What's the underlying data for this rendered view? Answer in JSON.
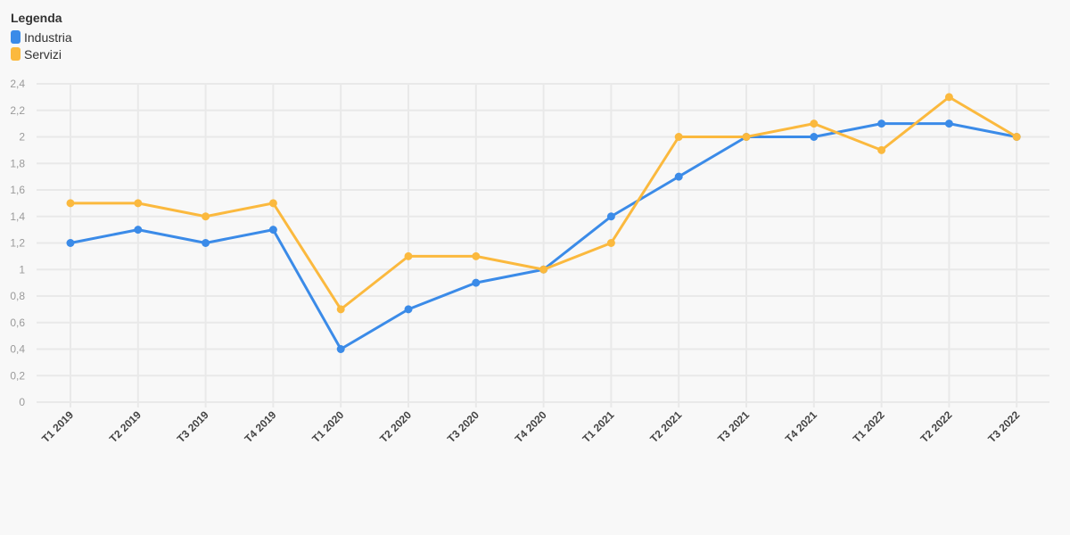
{
  "legend": {
    "title": "Legenda",
    "items": [
      {
        "label": "Industria",
        "color": "#3b8be8"
      },
      {
        "label": "Servizi",
        "color": "#fbb93e"
      }
    ]
  },
  "chart_data": {
    "type": "line",
    "title": "",
    "xlabel": "",
    "ylabel": "",
    "categories": [
      "T1 2019",
      "T2 2019",
      "T3 2019",
      "T4 2019",
      "T1 2020",
      "T2 2020",
      "T3 2020",
      "T4 2020",
      "T1 2021",
      "T2 2021",
      "T3 2021",
      "T4 2021",
      "T1 2022",
      "T2 2022",
      "T3 2022"
    ],
    "ylim": [
      0,
      2.4
    ],
    "yticks": [
      0,
      0.2,
      0.4,
      0.6,
      0.8,
      1,
      1.2,
      1.4,
      1.6,
      1.8,
      2,
      2.2,
      2.4
    ],
    "ytick_labels": [
      "0",
      "0,2",
      "0,4",
      "0,6",
      "0,8",
      "1",
      "1,2",
      "1,4",
      "1,6",
      "1,8",
      "2",
      "2,2",
      "2,4"
    ],
    "grid": true,
    "legend_position": "top-left",
    "series": [
      {
        "name": "Industria",
        "color": "#3b8be8",
        "values": [
          1.2,
          1.3,
          1.2,
          1.3,
          0.4,
          0.7,
          0.9,
          1.0,
          1.4,
          1.7,
          2.0,
          2.0,
          2.1,
          2.1,
          2.0
        ]
      },
      {
        "name": "Servizi",
        "color": "#fbb93e",
        "values": [
          1.5,
          1.5,
          1.4,
          1.5,
          0.7,
          1.1,
          1.1,
          1.0,
          1.2,
          2.0,
          2.0,
          2.1,
          1.9,
          2.3,
          2.0
        ]
      }
    ]
  }
}
